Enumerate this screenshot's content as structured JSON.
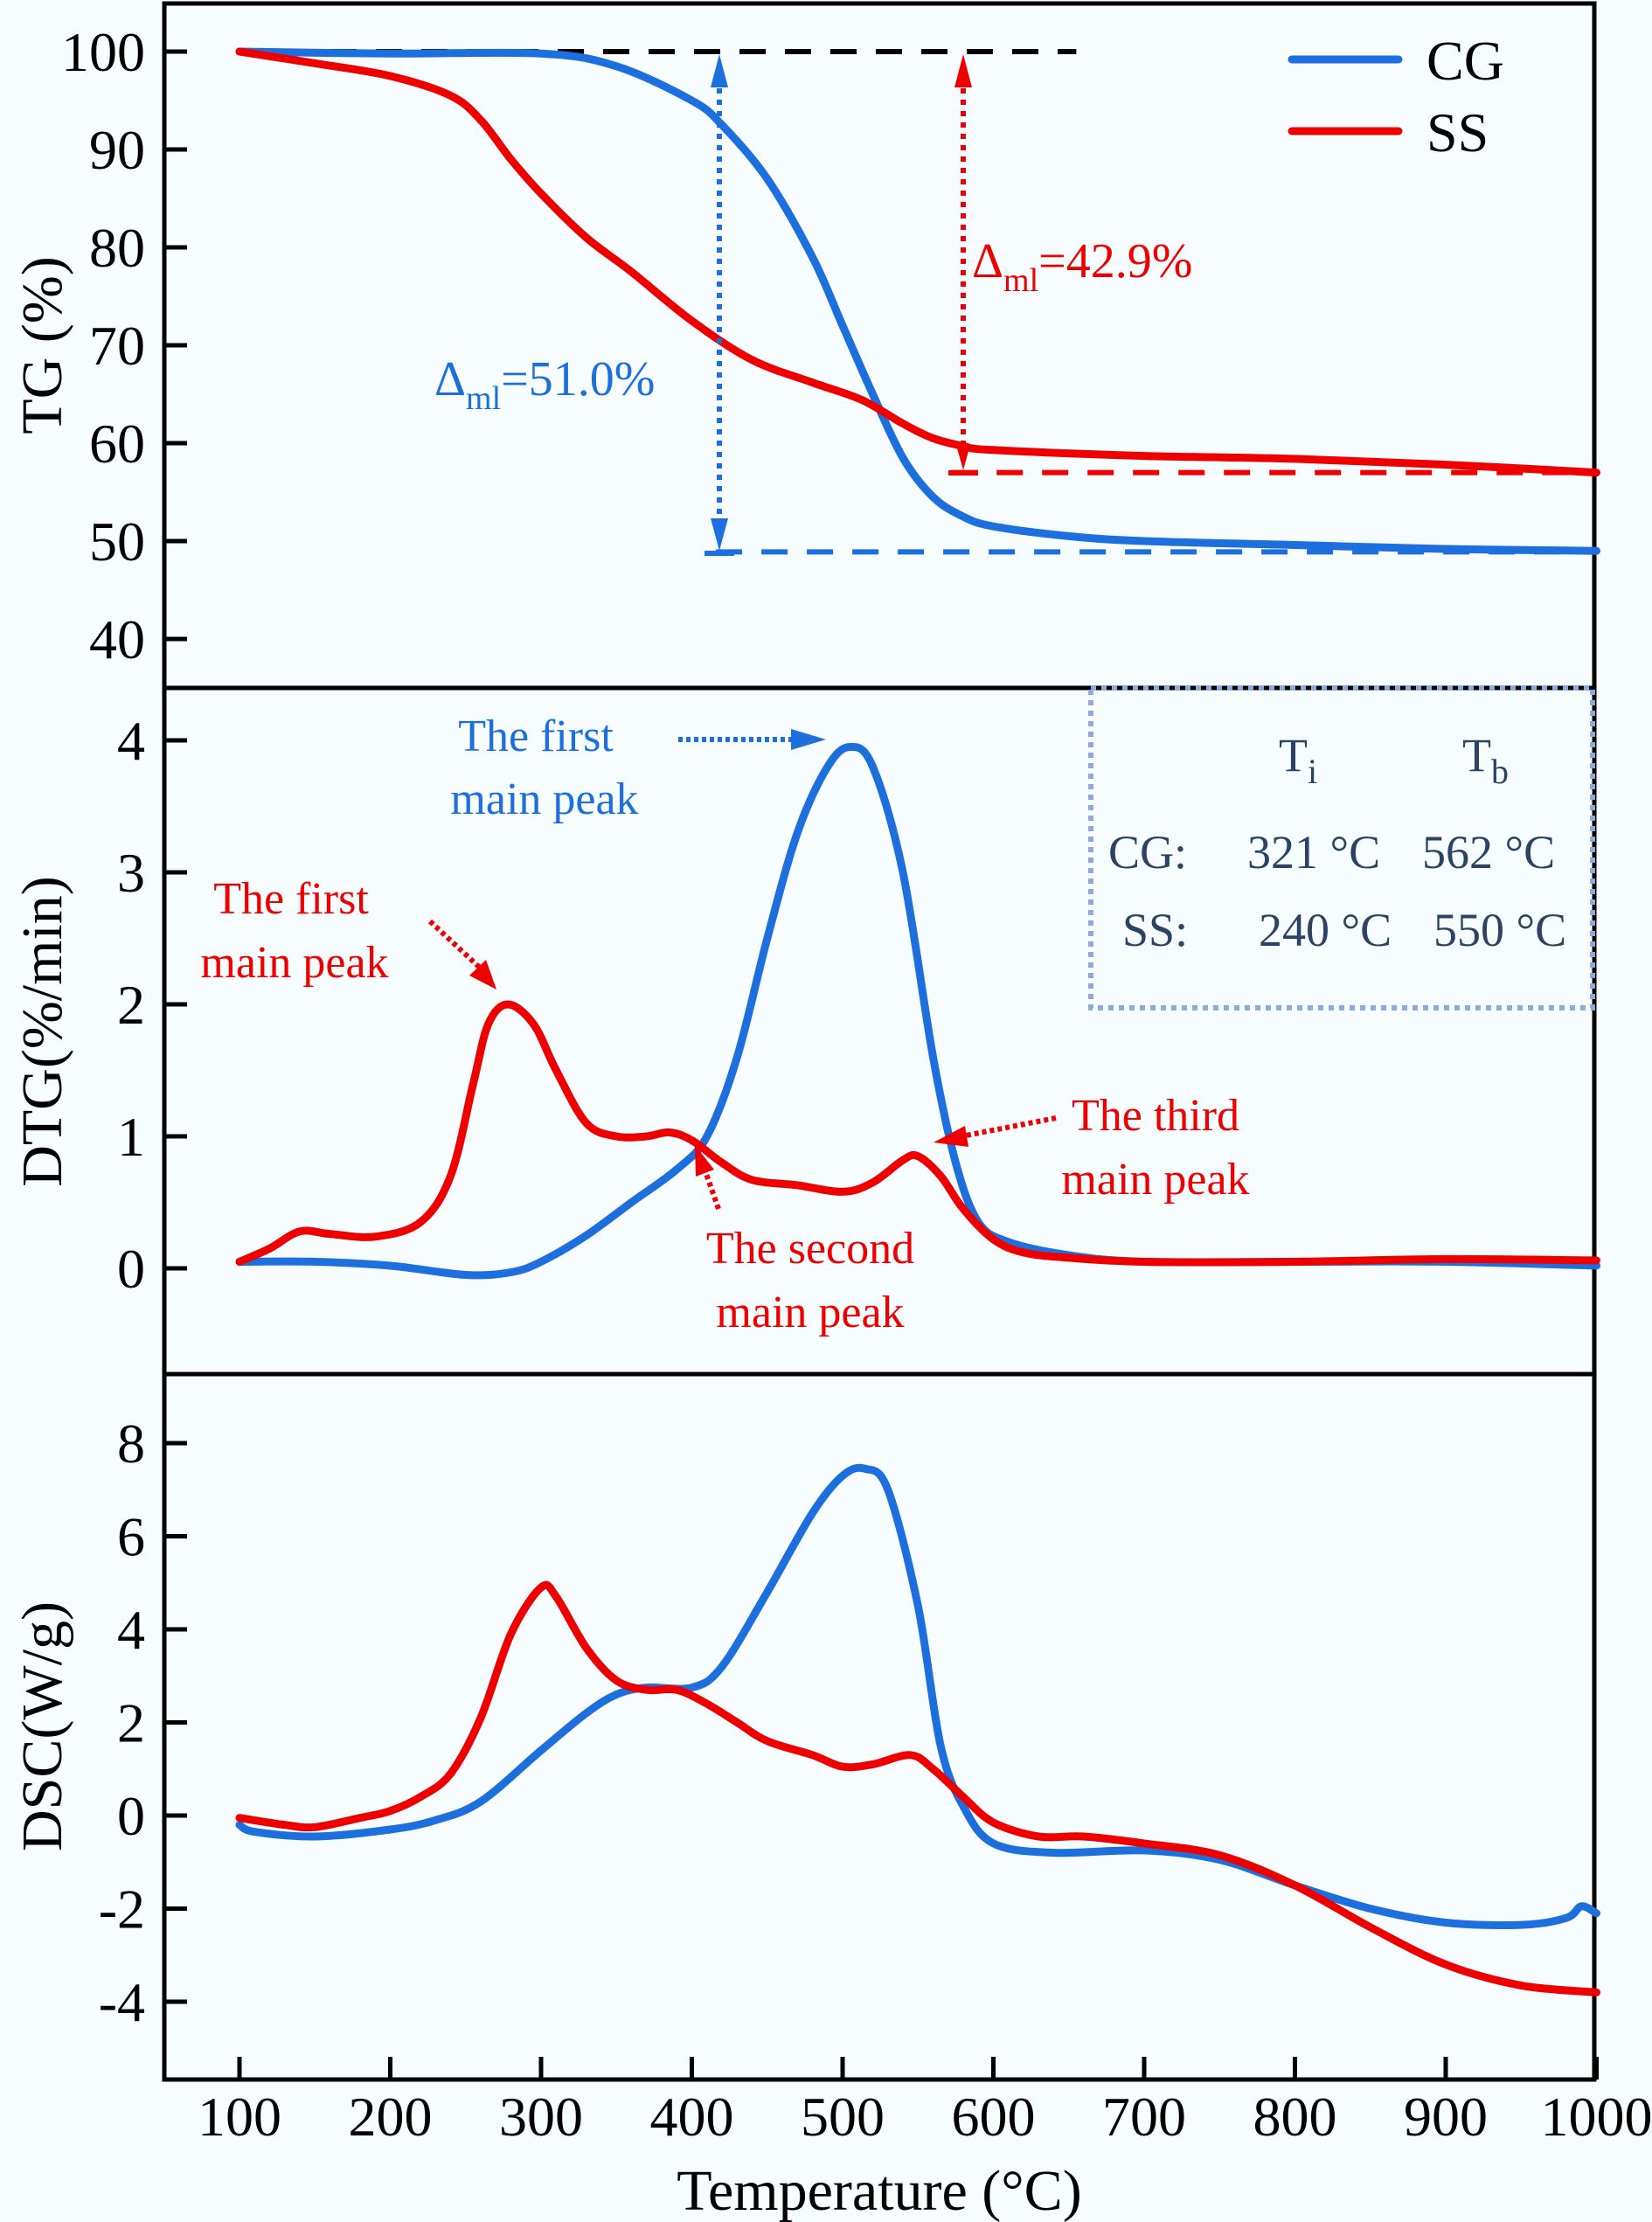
{
  "colors": {
    "cg": "#1c6fdc",
    "ss": "#ee0000",
    "inset_text": "#2b4466",
    "inset_border": "#8aaae0",
    "baseline": "#000000"
  },
  "legend": [
    {
      "name": "CG"
    },
    {
      "name": "SS"
    }
  ],
  "chart_data": [
    {
      "type": "line",
      "panel": "TG",
      "ylabel": "TG (%)",
      "xlabel": "Temperature (°C)",
      "xlim": [
        50,
        1000
      ],
      "ylim": [
        35,
        105
      ],
      "yticks": [
        40,
        50,
        60,
        70,
        80,
        90,
        100
      ],
      "legend_position": "top-right",
      "series": [
        {
          "name": "CG",
          "x": [
            100,
            200,
            300,
            350,
            400,
            420,
            450,
            480,
            500,
            520,
            540,
            560,
            580,
            600,
            650,
            700,
            800,
            900,
            1000
          ],
          "y": [
            100,
            99.8,
            99.8,
            98.5,
            95,
            92.5,
            87,
            79,
            72,
            65,
            58.5,
            54.5,
            52.5,
            51.5,
            50.5,
            50,
            49.6,
            49.2,
            49.0
          ]
        },
        {
          "name": "SS",
          "x": [
            100,
            150,
            200,
            240,
            260,
            280,
            300,
            330,
            360,
            400,
            440,
            480,
            513,
            540,
            560,
            580,
            600,
            700,
            800,
            900,
            1000
          ],
          "y": [
            100,
            98.8,
            97.5,
            95.5,
            93,
            89,
            85.5,
            81,
            77.5,
            72.5,
            68.5,
            66.2,
            64.4,
            62,
            60.5,
            59.7,
            59.3,
            58.7,
            58.4,
            57.8,
            57.0
          ]
        }
      ],
      "reference_lines": [
        {
          "label": "initial",
          "value": 100,
          "x_from": 100,
          "x_to": 655,
          "color": "#000000"
        },
        {
          "label": "CG final",
          "value": 48.9,
          "x_from": 416,
          "x_to": 1000,
          "color": "#1c6fdc"
        },
        {
          "label": "SS final",
          "value": 57.0,
          "x_from": 572,
          "x_to": 1000,
          "color": "#ee0000"
        }
      ],
      "annotations": [
        {
          "series": "CG",
          "text_main": "Δ",
          "text_sub": "ml",
          "text_value": "=51.0%",
          "arrow_x": 417,
          "from": 100,
          "to": 48.9
        },
        {
          "series": "SS",
          "text_main": "Δ",
          "text_sub": "ml",
          "text_value": "=42.9%",
          "arrow_x": 579,
          "from": 100,
          "to": 57.0
        }
      ]
    },
    {
      "type": "line",
      "panel": "DTG",
      "ylabel": "DTG(%/min)",
      "xlim": [
        50,
        1000
      ],
      "ylim": [
        -0.95,
        4.45
      ],
      "yticks": [
        0,
        1,
        2,
        3,
        4
      ],
      "series": [
        {
          "name": "CG",
          "x": [
            100,
            150,
            200,
            250,
            280,
            300,
            330,
            360,
            390,
            410,
            430,
            450,
            470,
            490,
            505,
            520,
            540,
            560,
            575,
            590,
            610,
            650,
            700,
            800,
            900,
            1000
          ],
          "y": [
            0.05,
            0.05,
            0.02,
            -0.05,
            -0.03,
            0.05,
            0.25,
            0.5,
            0.75,
            1.0,
            1.6,
            2.5,
            3.3,
            3.8,
            3.95,
            3.8,
            3.0,
            1.6,
            0.8,
            0.35,
            0.2,
            0.1,
            0.05,
            0.05,
            0.05,
            0.02
          ]
        },
        {
          "name": "SS",
          "x": [
            100,
            120,
            140,
            160,
            190,
            220,
            240,
            255,
            265,
            278,
            295,
            310,
            330,
            350,
            370,
            385,
            400,
            420,
            440,
            470,
            500,
            520,
            540,
            550,
            565,
            580,
            600,
            620,
            650,
            700,
            800,
            900,
            1000
          ],
          "y": [
            0.05,
            0.15,
            0.28,
            0.26,
            0.24,
            0.35,
            0.7,
            1.4,
            1.85,
            2.0,
            1.85,
            1.5,
            1.1,
            1.0,
            1.0,
            1.03,
            0.97,
            0.8,
            0.67,
            0.63,
            0.58,
            0.65,
            0.82,
            0.85,
            0.7,
            0.45,
            0.22,
            0.12,
            0.08,
            0.05,
            0.05,
            0.07,
            0.06
          ]
        }
      ],
      "annotations": [
        {
          "series": "CG",
          "lines": [
            "The first",
            "main peak"
          ]
        },
        {
          "series": "SS",
          "lines": [
            "The first",
            "main peak"
          ]
        },
        {
          "series": "SS",
          "lines": [
            "The second",
            "main peak"
          ]
        },
        {
          "series": "SS",
          "lines": [
            "The third",
            "main peak"
          ]
        }
      ],
      "inset_table": {
        "headers": [
          "",
          "Ti",
          "Tb"
        ],
        "header_main": [
          "T",
          "T"
        ],
        "header_sub": [
          "i",
          "b"
        ],
        "rows": [
          {
            "label": "CG:",
            "ti": "321 °C",
            "tb": "562 °C"
          },
          {
            "label": "SS:",
            "ti": "240 °C",
            "tb": "550 °C"
          }
        ]
      }
    },
    {
      "type": "line",
      "panel": "DSC",
      "ylabel": "DSC(W/g)",
      "xlabel": "Temperature (°C)",
      "xlim": [
        50,
        1000
      ],
      "ylim": [
        -5.5,
        9.5
      ],
      "yticks": [
        -4,
        -2,
        0,
        2,
        4,
        6,
        8
      ],
      "xticks": [
        100,
        200,
        300,
        400,
        500,
        600,
        700,
        800,
        900,
        1000
      ],
      "series": [
        {
          "name": "CG",
          "x": [
            100,
            110,
            150,
            200,
            230,
            260,
            300,
            330,
            350,
            370,
            400,
            420,
            450,
            480,
            500,
            515,
            530,
            550,
            565,
            580,
            600,
            640,
            700,
            750,
            800,
            850,
            900,
            950,
            980,
            990,
            1000
          ],
          "y": [
            -0.2,
            -0.35,
            -0.45,
            -0.3,
            -0.1,
            0.3,
            1.4,
            2.2,
            2.6,
            2.75,
            2.75,
            3.2,
            4.8,
            6.5,
            7.3,
            7.45,
            7.0,
            4.5,
            1.5,
            0.2,
            -0.6,
            -0.8,
            -0.75,
            -0.95,
            -1.5,
            -2.0,
            -2.3,
            -2.35,
            -2.2,
            -1.95,
            -2.1
          ]
        },
        {
          "name": "SS",
          "x": [
            100,
            130,
            150,
            180,
            200,
            220,
            240,
            260,
            280,
            300,
            310,
            330,
            350,
            370,
            390,
            410,
            430,
            450,
            480,
            500,
            520,
            545,
            560,
            580,
            600,
            630,
            660,
            700,
            750,
            800,
            850,
            900,
            950,
            1000
          ],
          "y": [
            -0.05,
            -0.2,
            -0.25,
            -0.05,
            0.1,
            0.4,
            0.9,
            2.1,
            3.9,
            4.9,
            4.7,
            3.6,
            2.9,
            2.7,
            2.7,
            2.4,
            2.0,
            1.6,
            1.3,
            1.05,
            1.1,
            1.3,
            1.0,
            0.4,
            -0.15,
            -0.45,
            -0.45,
            -0.6,
            -0.85,
            -1.5,
            -2.4,
            -3.2,
            -3.65,
            -3.8
          ]
        }
      ]
    }
  ],
  "labels": {
    "tg_ylabel": "TG (%)",
    "dtg_ylabel": "DTG(%/min)",
    "dsc_ylabel": "DSC(W/g)",
    "xlabel": "Temperature (°C)",
    "tg_ticks": [
      "100",
      "90",
      "80",
      "70",
      "60",
      "50",
      "40"
    ],
    "dtg_ticks": [
      "4",
      "3",
      "2",
      "1",
      "0"
    ],
    "dsc_ticks": [
      "8",
      "6",
      "4",
      "2",
      "0",
      "-2",
      "-4"
    ],
    "x_ticks": [
      "100",
      "200",
      "300",
      "400",
      "500",
      "600",
      "700",
      "800",
      "900",
      "1000"
    ],
    "delta": "Δ",
    "ml": "ml",
    "cg_loss": "=51.0%",
    "ss_loss": "=42.9%",
    "cg_peak1_l1": "The first",
    "cg_peak1_l2": "main peak",
    "ss_peak1_l1": "The first",
    "ss_peak1_l2": "main peak",
    "ss_peak2_l1": "The second",
    "ss_peak2_l2": "main peak",
    "ss_peak3_l1": "The third",
    "ss_peak3_l2": "main peak",
    "inset_T": "T",
    "inset_i": "i",
    "inset_b": "b",
    "inset_cg": "CG:",
    "inset_ss": "SS:",
    "inset_cg_ti": "321 °C",
    "inset_cg_tb": "562 °C",
    "inset_ss_ti": "240 °C",
    "inset_ss_tb": "550 °C",
    "legend_cg": "CG",
    "legend_ss": "SS"
  }
}
